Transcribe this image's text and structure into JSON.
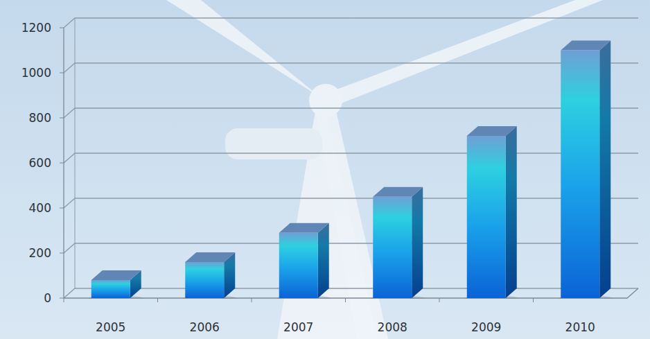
{
  "chart_data": {
    "type": "bar",
    "categories": [
      "2005",
      "2006",
      "2007",
      "2008",
      "2009",
      "2010"
    ],
    "values": [
      80,
      160,
      290,
      450,
      720,
      1100
    ],
    "color": "#0b63d6",
    "ylim": [
      0,
      1200
    ],
    "yticks": [
      0,
      200,
      400,
      600,
      800,
      1000,
      1200
    ],
    "grid": true
  }
}
